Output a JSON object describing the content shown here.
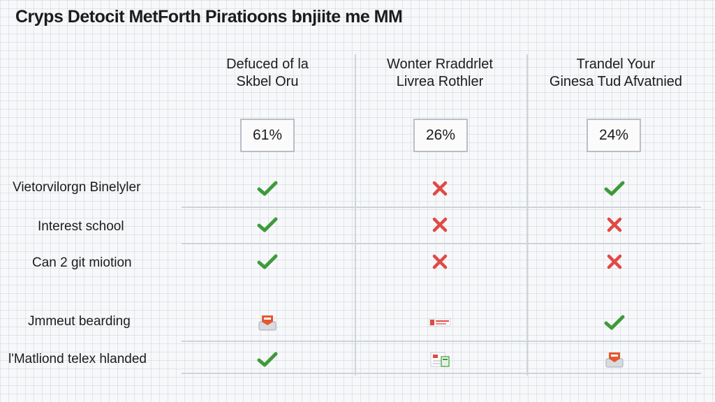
{
  "title": "Cryps Detocit MetForth Piratioons bnjiite me MM",
  "columns": [
    {
      "line1": "Defuced of la",
      "line2": "Skbel Oru",
      "percent": "61%"
    },
    {
      "line1": "Wonter Rraddrlet",
      "line2": "Livrea Rothler",
      "percent": "26%"
    },
    {
      "line1": "Trandel Your",
      "line2": "Ginesa Tud Afvatnied",
      "percent": "24%"
    }
  ],
  "rows": [
    {
      "label": "Vietorvilorgn Binelyler",
      "cells": [
        "check",
        "cross",
        "check"
      ]
    },
    {
      "label": "Interest school",
      "cells": [
        "check",
        "cross",
        "cross"
      ]
    },
    {
      "label": "Can 2 git miotion",
      "cells": [
        "check",
        "cross",
        "cross"
      ]
    },
    {
      "label": "Jmmeut bearding",
      "cells": [
        "orange-badge-icon",
        "red-label-icon",
        "check"
      ]
    },
    {
      "label": "l'Matliond telex hlanded",
      "cells": [
        "check",
        "document-icon",
        "orange-badge-icon"
      ]
    }
  ],
  "colors": {
    "check": "#3f9a3a",
    "cross": "#e04a45",
    "badge": "#e2592f",
    "grid_line": "#cfd4da"
  }
}
